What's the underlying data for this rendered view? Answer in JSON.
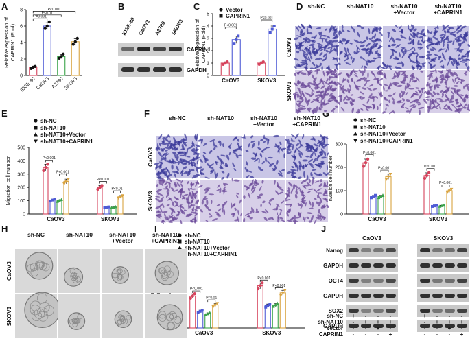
{
  "panels": {
    "A": {
      "label": "A"
    },
    "B": {
      "label": "B",
      "cell_lines": [
        "IOSE-80",
        "CaOV3",
        "A2780",
        "SKOV3"
      ],
      "proteins": [
        "CAPRIN1",
        "GAPDH"
      ]
    },
    "D": {
      "label": "D",
      "columns": [
        "sh-NC",
        "sh-NAT10",
        "sh-NAT10\n+Vector",
        "sh-NAT10\n+CAPRIN1"
      ],
      "rows": [
        "CaOV3",
        "SKOV3"
      ]
    },
    "F": {
      "label": "F",
      "columns": [
        "sh-NC",
        "sh-NAT10",
        "sh-NAT10\n+Vector",
        "sh-NAT10\n+CAPRIN1"
      ],
      "rows": [
        "CaOV3",
        "SKOV3"
      ]
    },
    "H": {
      "label": "H",
      "columns": [
        "sh-NC",
        "sh-NAT10",
        "sh-NAT10\n+Vector",
        "sh-NAT10\n+CAPRIN1"
      ],
      "rows": [
        "CaOV3",
        "SKOV3"
      ]
    },
    "J": {
      "label": "J",
      "groups": [
        "CaOV3",
        "SKOV3"
      ],
      "proteins": [
        "Nanog",
        "GAPDH",
        "OCT4",
        "GAPDH",
        "SOX2",
        "GAPDH"
      ],
      "conditions": [
        "sh-NC",
        "sh-NAT10",
        "Vector",
        "CAPRIN1"
      ],
      "signs": [
        [
          "+",
          "-",
          "-",
          "-"
        ],
        [
          "-",
          "+",
          "+",
          "+"
        ],
        [
          "-",
          "-",
          "+",
          "-"
        ],
        [
          "-",
          "-",
          "-",
          "+"
        ]
      ]
    }
  },
  "chart_data": [
    {
      "id": "A",
      "type": "bar",
      "categories": [
        "IOSE-80",
        "CaOV3",
        "A2780",
        "SKOV3"
      ],
      "values": [
        1.0,
        6.0,
        2.3,
        4.1
      ],
      "ylabel": "Relative expression of\nCAPRIN1 (Fold)",
      "ylim": [
        0,
        8
      ],
      "yticks": [
        0,
        2,
        4,
        6,
        8
      ],
      "colors": [
        "#d6435c",
        "#4f5bd5",
        "#3aa34a",
        "#d9a441"
      ],
      "points": [
        [
          0.85,
          1.0,
          1.1
        ],
        [
          5.7,
          6.0,
          6.5
        ],
        [
          2.1,
          2.3,
          2.6
        ],
        [
          3.8,
          4.1,
          4.5
        ]
      ],
      "brackets": [
        {
          "from": 0,
          "to": 1,
          "level": 6.9,
          "text": "P=0.001"
        },
        {
          "from": 0,
          "to": 2,
          "level": 7.35,
          "text": "P<0.01"
        },
        {
          "from": 0,
          "to": 3,
          "level": 7.8,
          "text": "P<0.001"
        }
      ]
    },
    {
      "id": "C",
      "type": "bar",
      "categories": [
        "CaOV3",
        "SKOV3"
      ],
      "ylabel": "Relative expression of\nCAPRIN1 (Fold)",
      "ylim": [
        0,
        5
      ],
      "yticks": [
        0,
        1,
        2,
        3,
        4,
        5
      ],
      "series": [
        {
          "name": "Vector",
          "values": [
            1.0,
            1.0
          ],
          "points": [
            [
              0.9,
              1.0,
              1.1
            ],
            [
              0.9,
              1.0,
              1.1
            ]
          ],
          "color": "#d6435c"
        },
        {
          "name": "CAPRIN1",
          "values": [
            2.9,
            3.75
          ],
          "points": [
            [
              2.6,
              2.9,
              3.2
            ],
            [
              3.5,
              3.75,
              4.0
            ]
          ],
          "color": "#4f5bd5"
        }
      ],
      "brackets": [
        {
          "group": 0,
          "level": 3.9,
          "text": "P<0.001"
        },
        {
          "group": 1,
          "level": 4.5,
          "text": "P<0.001"
        }
      ]
    },
    {
      "id": "E",
      "type": "bar",
      "categories": [
        "CaOV3",
        "SKOV3"
      ],
      "ylabel": "Migration cell number",
      "ylim": [
        0,
        500
      ],
      "yticks": [
        0,
        100,
        200,
        300,
        400,
        500
      ],
      "series": [
        {
          "name": "sh-NC",
          "values": [
            350,
            200
          ],
          "color": "#d6435c"
        },
        {
          "name": "sh-NAT10",
          "values": [
            105,
            50
          ],
          "color": "#4f5bd5"
        },
        {
          "name": "sh-NAT10+Vector",
          "values": [
            100,
            50
          ],
          "color": "#3aa34a"
        },
        {
          "name": "sh-NAT10+CAPRIN1",
          "values": [
            245,
            130
          ],
          "color": "#d9a441"
        }
      ],
      "brackets": [
        {
          "group": 0,
          "from": 0,
          "to": 1,
          "level": 405,
          "text": "P<0.001"
        },
        {
          "group": 0,
          "from": 2,
          "to": 3,
          "level": 300,
          "text": "P<0.001"
        },
        {
          "group": 1,
          "from": 0,
          "to": 1,
          "level": 245,
          "text": "P<0.001"
        },
        {
          "group": 1,
          "from": 2,
          "to": 3,
          "level": 175,
          "text": "P<0.01"
        }
      ]
    },
    {
      "id": "G",
      "type": "bar",
      "categories": [
        "CaOV3",
        "SKOV3"
      ],
      "ylabel": "Invasion cell number",
      "ylim": [
        0,
        300
      ],
      "yticks": [
        0,
        100,
        200,
        300
      ],
      "series": [
        {
          "name": "sh-NC",
          "values": [
            220,
            165
          ],
          "color": "#d6435c"
        },
        {
          "name": "sh-NAT10",
          "values": [
            75,
            35
          ],
          "color": "#4f5bd5"
        },
        {
          "name": "sh-NAT10+Vector",
          "values": [
            75,
            35
          ],
          "color": "#3aa34a"
        },
        {
          "name": "sh-NAT10+CAPRIN1",
          "values": [
            160,
            100
          ],
          "color": "#d9a441"
        }
      ],
      "brackets": [
        {
          "group": 0,
          "from": 0,
          "to": 1,
          "level": 255,
          "text": "P<0.001"
        },
        {
          "group": 0,
          "from": 2,
          "to": 3,
          "level": 188,
          "text": "P<0.001"
        },
        {
          "group": 1,
          "from": 0,
          "to": 1,
          "level": 195,
          "text": "P<0.001"
        },
        {
          "group": 1,
          "from": 2,
          "to": 3,
          "level": 125,
          "text": "P<0.001"
        }
      ]
    },
    {
      "id": "I",
      "type": "bar",
      "categories": [
        "CaOV3",
        "SKOV3"
      ],
      "ylabel": "Sphere formation rate\n(% of seeding cells)",
      "ylim": [
        0,
        100
      ],
      "yticks": [
        0,
        20,
        40,
        60,
        80,
        100
      ],
      "series": [
        {
          "name": "sh-NC",
          "values": [
            50,
            66
          ],
          "color": "#d6435c"
        },
        {
          "name": "sh-NAT10",
          "values": [
            26,
            35
          ],
          "color": "#4f5bd5"
        },
        {
          "name": "sh-NAT10+Vector",
          "values": [
            22,
            36
          ],
          "color": "#3aa34a"
        },
        {
          "name": "sh-NAT10+CAPRIN1",
          "values": [
            36,
            55
          ],
          "color": "#d9a441"
        }
      ],
      "brackets": [
        {
          "group": 0,
          "from": 0,
          "to": 1,
          "level": 58,
          "text": "P<0.001"
        },
        {
          "group": 0,
          "from": 2,
          "to": 3,
          "level": 44,
          "text": "P<0.01"
        },
        {
          "group": 1,
          "from": 0,
          "to": 1,
          "level": 75,
          "text": "P<0.001"
        },
        {
          "group": 1,
          "from": 2,
          "to": 3,
          "level": 63,
          "text": "P<0.001"
        }
      ]
    }
  ]
}
